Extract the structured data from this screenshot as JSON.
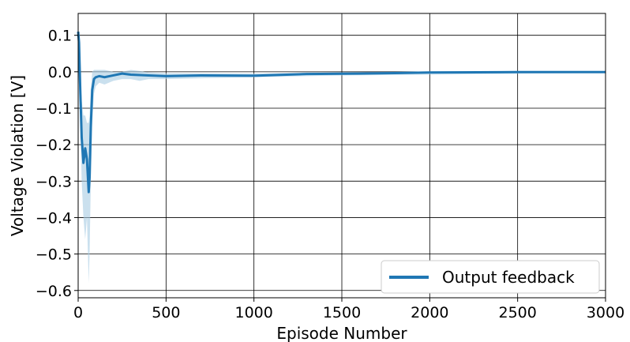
{
  "chart_data": {
    "type": "line",
    "xlabel": "Episode Number",
    "ylabel": "Voltage Violation [V]",
    "xlim": [
      0,
      3000
    ],
    "ylim": [
      -0.62,
      0.16
    ],
    "xticks": [
      0,
      500,
      1000,
      1500,
      2000,
      2500,
      3000
    ],
    "xtick_labels": [
      "0",
      "500",
      "1000",
      "1500",
      "2000",
      "2500",
      "3000"
    ],
    "yticks": [
      0.1,
      0.0,
      -0.1,
      -0.2,
      -0.3,
      -0.4,
      -0.5,
      -0.6
    ],
    "ytick_labels": [
      "0.1",
      "0.0",
      "−0.1",
      "−0.2",
      "−0.3",
      "−0.4",
      "−0.5",
      "−0.6"
    ],
    "grid": true,
    "legend_position": "bottom-right",
    "colors": {
      "line": "#1f77b4",
      "band": "#a6cbe3"
    },
    "series": [
      {
        "name": "Output feedback",
        "x": [
          0,
          5,
          12,
          20,
          30,
          40,
          50,
          60,
          65,
          72,
          80,
          90,
          100,
          120,
          150,
          200,
          250,
          300,
          400,
          500,
          700,
          1000,
          1300,
          1600,
          2000,
          2500,
          3000
        ],
        "y": [
          0.11,
          0.08,
          -0.05,
          -0.18,
          -0.25,
          -0.21,
          -0.24,
          -0.33,
          -0.29,
          -0.15,
          -0.05,
          -0.02,
          -0.015,
          -0.012,
          -0.015,
          -0.01,
          -0.005,
          -0.008,
          -0.01,
          -0.012,
          -0.01,
          -0.011,
          -0.006,
          -0.005,
          -0.002,
          -0.001,
          -0.001
        ]
      }
    ],
    "band": {
      "x": [
        0,
        5,
        12,
        20,
        30,
        40,
        50,
        60,
        65,
        72,
        80,
        90,
        100,
        120,
        150,
        200,
        250,
        300,
        350,
        400,
        500,
        1000,
        1500,
        3000
      ],
      "upper": [
        0.12,
        0.1,
        0.0,
        -0.08,
        -0.12,
        -0.12,
        -0.14,
        -0.14,
        -0.12,
        -0.05,
        0.0,
        0.005,
        0.005,
        0.005,
        0.005,
        0.0,
        0.0,
        0.005,
        0.002,
        -0.002,
        -0.004,
        -0.005,
        -0.002,
        0.0
      ],
      "lower": [
        0.1,
        0.05,
        -0.12,
        -0.3,
        -0.4,
        -0.46,
        -0.4,
        -0.58,
        -0.5,
        -0.3,
        -0.14,
        -0.06,
        -0.04,
        -0.03,
        -0.035,
        -0.025,
        -0.02,
        -0.02,
        -0.025,
        -0.02,
        -0.02,
        -0.015,
        -0.01,
        -0.003
      ]
    }
  }
}
